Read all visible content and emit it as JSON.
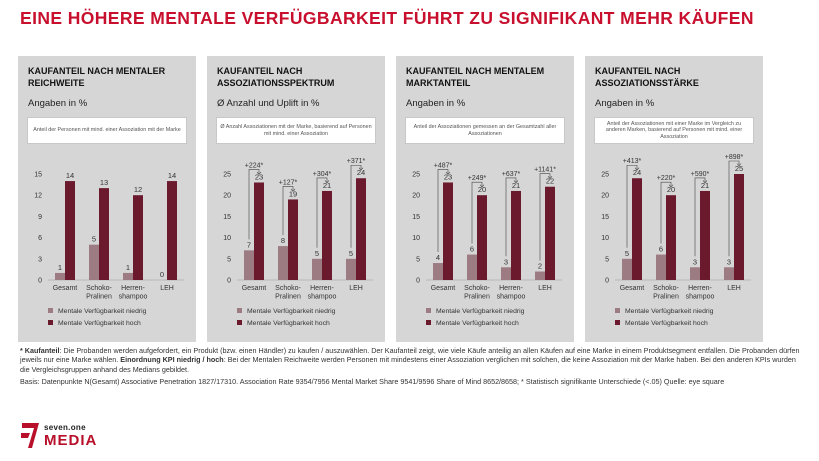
{
  "headline": "EINE HÖHERE MENTALE VERFÜGBARKEIT FÜHRT ZU SIGNIFIKANT MEHR KÄUFEN",
  "colors": {
    "headline": "#c8102e",
    "dark": "#6b1a2e",
    "light": "#9c7c82",
    "panel": "#d6d6d6"
  },
  "chart_data": [
    {
      "type": "bar",
      "title": "KAUFANTEIL NACH MENTALER REICHWEITE",
      "subtitle": "Angaben in %",
      "note": "Anteil der Personen mit mind. einer Assoziation mit der Marke",
      "categories": [
        "Gesamt",
        "Schoko-\nPralinen",
        "Herren-\nshampoo",
        "LEH"
      ],
      "ylim": [
        0,
        15
      ],
      "yticks": [
        0,
        3,
        6,
        9,
        12,
        15
      ],
      "series": [
        {
          "name": "Mentale Verfügbarkeit niedrig",
          "values": [
            1,
            5,
            1,
            0
          ]
        },
        {
          "name": "Mentale Verfügbarkeit hoch",
          "values": [
            14,
            13,
            12,
            14
          ]
        }
      ],
      "uplift": []
    },
    {
      "type": "bar",
      "title": "KAUFANTEIL NACH ASSOZIATIONSSPEKTRUM",
      "subtitle": "Ø Anzahl und Uplift in %",
      "note": "Ø Anzahl Assoziationen mit der Marke, basierend auf Personen mit mind. einer Assoziation",
      "categories": [
        "Gesamt",
        "Schoko-\nPralinen",
        "Herren-\nshampoo",
        "LEH"
      ],
      "ylim": [
        0,
        25
      ],
      "yticks": [
        0,
        5,
        10,
        15,
        20,
        25
      ],
      "series": [
        {
          "name": "Mentale Verfügbarkeit niedrig",
          "values": [
            7,
            8,
            5,
            5
          ]
        },
        {
          "name": "Mentale Verfügbarkeit hoch",
          "values": [
            23,
            19,
            21,
            24
          ]
        }
      ],
      "uplift": [
        "+224*",
        "+127*",
        "+304*",
        "+371*"
      ]
    },
    {
      "type": "bar",
      "title": "KAUFANTEIL NACH MENTALEM MARKTANTEIL",
      "subtitle": "Angaben in %",
      "note": "Anteil der Assoziationen gemessen an der Gesamtzahl aller Assoziationen",
      "categories": [
        "Gesamt",
        "Schoko-\nPralinen",
        "Herren-\nshampoo",
        "LEH"
      ],
      "ylim": [
        0,
        25
      ],
      "yticks": [
        0,
        5,
        10,
        15,
        20,
        25
      ],
      "series": [
        {
          "name": "Mentale Verfügbarkeit niedrig",
          "values": [
            4,
            6,
            3,
            2
          ]
        },
        {
          "name": "Mentale Verfügbarkeit hoch",
          "values": [
            23,
            20,
            21,
            22
          ]
        }
      ],
      "uplift": [
        "+487*",
        "+249*",
        "+637*",
        "+1141*"
      ]
    },
    {
      "type": "bar",
      "title": "KAUFANTEIL NACH ASSOZIATIONSSTÄRKE",
      "subtitle": "Angaben in %",
      "note": "Anteil der Assoziationen mit einer Marke im Vergleich zu anderen Marken, basierend auf Personen mit mind. einer Assoziation",
      "categories": [
        "Gesamt",
        "Schoko-\nPralinen",
        "Herren-\nshampoo",
        "LEH"
      ],
      "ylim": [
        0,
        25
      ],
      "yticks": [
        0,
        5,
        10,
        15,
        20,
        25
      ],
      "series": [
        {
          "name": "Mentale Verfügbarkeit niedrig",
          "values": [
            5,
            6,
            3,
            3
          ]
        },
        {
          "name": "Mentale Verfügbarkeit hoch",
          "values": [
            24,
            20,
            21,
            25
          ]
        }
      ],
      "uplift": [
        "+413*",
        "+220*",
        "+590*",
        "+898*"
      ]
    }
  ],
  "footnote": {
    "star": "* ",
    "kaufanteil_label": "Kaufanteil",
    "part1": ": Die Probanden werden aufgefordert, ein Produkt (bzw. einen Händler) zu kaufen / auszuwählen. Der Kaufanteil zeigt, wie viele Käufe anteilig an allen Käufen auf eine Marke in einem Produktsegment entfallen. Die Probanden dürfen jeweils nur eine Marke wählen. ",
    "kpi_label": "Einordnung KPI niedrig / hoch",
    "part2": ": Bei der Mentalen Reichweite werden Personen mit mindestens einer Assoziation verglichen mit solchen, die keine Assoziation mit der Marke haben. Bei den anderen KPIs wurden die Vergleichsgruppen anhand des Medians gebildet.",
    "basis": "Basis: Datenpunkte N(Gesamt) Associative Penetration 1827/17310. Association Rate 9354/7956 Mental Market Share 9541/9596 Share of Mind 8652/8658; * Statistisch signifikante Unterschiede (<.05) Quelle: eye square"
  },
  "logo": {
    "line1": "seven.one",
    "line2": "MEDIA"
  }
}
